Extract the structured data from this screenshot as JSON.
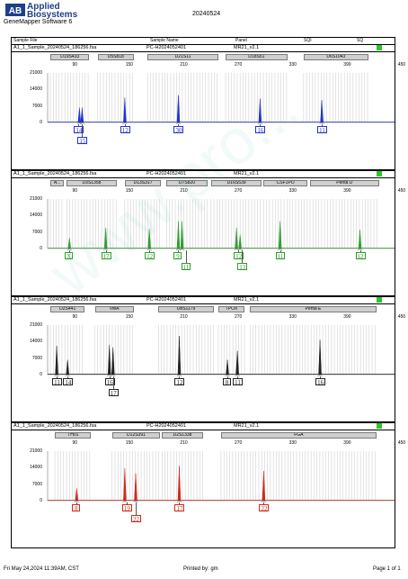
{
  "brand": {
    "line1": "Applied",
    "line2": "Biosystems",
    "mark": "AB"
  },
  "app_name": "GeneMapper Software 6",
  "report_date": "20240524",
  "columns": {
    "sample_file": "Sample File",
    "sample_name": "Sample Name",
    "panel": "Panel",
    "sqi": "SQI",
    "sq": "SQ"
  },
  "sample": {
    "file": "A1_1_Sample_20240524_186256.fsa",
    "name": "PC-H2024052401",
    "panel": "MR21_v2.1"
  },
  "x_ticks": [
    "90",
    "150",
    "210",
    "270",
    "330",
    "390",
    "450"
  ],
  "y_ticks": [
    "21000",
    "14000",
    "7000",
    "0"
  ],
  "panels": [
    {
      "color": "#2233cc",
      "markers": [
        "D19S433",
        "D5S818",
        "D21S11",
        "D18S51",
        "D6S1043"
      ],
      "alleles": [
        {
          "label": "14"
        },
        {
          "label": "15"
        },
        {
          "label": "12"
        },
        {
          "label": "30"
        },
        {
          "label": "16"
        },
        {
          "label": "11"
        }
      ]
    },
    {
      "color": "#2e9e2e",
      "markers": [
        "A...",
        "D3S1358",
        "D13S317",
        "D7S820",
        "D16S539",
        "CSF1PO",
        "Penta D"
      ],
      "alleles": [
        {
          "label": "X"
        },
        {
          "label": "17"
        },
        {
          "label": "12"
        },
        {
          "label": "9"
        },
        {
          "label": "11"
        },
        {
          "label": "12"
        },
        {
          "label": "13"
        },
        {
          "label": "11"
        },
        {
          "label": "12"
        }
      ]
    },
    {
      "color": "#222222",
      "markers": [
        "D2S441",
        "vWA",
        "D8S1179",
        "TPOX",
        "Penta E"
      ],
      "alleles": [
        {
          "label": "11"
        },
        {
          "label": "14"
        },
        {
          "label": "16"
        },
        {
          "label": "17"
        },
        {
          "label": "12"
        },
        {
          "label": "8"
        },
        {
          "label": "11"
        },
        {
          "label": "16"
        }
      ]
    },
    {
      "color": "#cc2a1a",
      "markers": [
        "TH01",
        "D12S391",
        "D2S1338",
        "FGA"
      ],
      "alleles": [
        {
          "label": "8"
        },
        {
          "label": "19"
        },
        {
          "label": "22"
        },
        {
          "label": "17"
        },
        {
          "label": "22"
        }
      ]
    }
  ],
  "footer": {
    "date": "Fri May 24,2024 11:39AM, CST",
    "printed_by": "Printed by: gm",
    "page": "Page 1 of 1"
  },
  "watermark": "www.pro..."
}
